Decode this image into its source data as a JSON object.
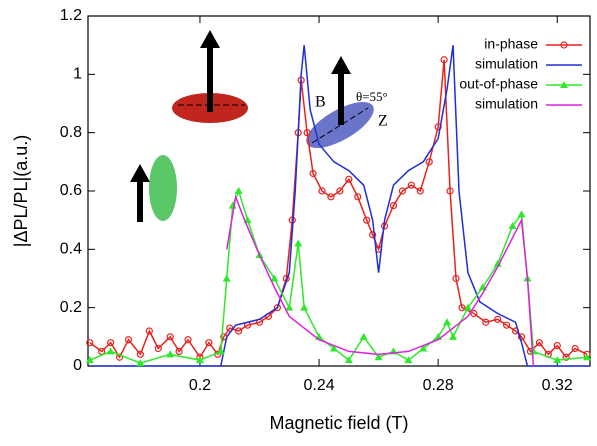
{
  "chart_data": {
    "type": "line",
    "xlabel": "Magnetic field (T)",
    "ylabel": "|ΔPL/PL|(a.u.)",
    "xlim": [
      0.1624,
      0.331
    ],
    "ylim": [
      0,
      1.2
    ],
    "xticks": [
      0.2,
      0.24,
      0.28,
      0.32
    ],
    "yticks": [
      0,
      0.2,
      0.4,
      0.6,
      0.8,
      1,
      1.2
    ],
    "legend": "upper right",
    "annotations": [
      "B",
      "θ=55°",
      "Z"
    ],
    "series": [
      {
        "name": "in-phase",
        "color": "#e8231e",
        "marker": "circle",
        "x": [
          0.163,
          0.167,
          0.17,
          0.173,
          0.176,
          0.18,
          0.183,
          0.186,
          0.19,
          0.193,
          0.196,
          0.2,
          0.203,
          0.206,
          0.208,
          0.21,
          0.213,
          0.216,
          0.22,
          0.223,
          0.226,
          0.229,
          0.231,
          0.233,
          0.234,
          0.236,
          0.238,
          0.241,
          0.244,
          0.247,
          0.25,
          0.253,
          0.256,
          0.258,
          0.26,
          0.262,
          0.265,
          0.268,
          0.271,
          0.274,
          0.277,
          0.28,
          0.282,
          0.284,
          0.286,
          0.288,
          0.292,
          0.296,
          0.3,
          0.303,
          0.306,
          0.308,
          0.311,
          0.314,
          0.317,
          0.32,
          0.323,
          0.326,
          0.33
        ],
        "values": [
          0.08,
          0.05,
          0.08,
          0.03,
          0.09,
          0.04,
          0.12,
          0.06,
          0.1,
          0.05,
          0.09,
          0.03,
          0.08,
          0.04,
          0.1,
          0.13,
          0.12,
          0.14,
          0.15,
          0.17,
          0.2,
          0.3,
          0.5,
          0.8,
          0.98,
          0.8,
          0.66,
          0.6,
          0.58,
          0.6,
          0.64,
          0.58,
          0.5,
          0.45,
          0.4,
          0.48,
          0.55,
          0.6,
          0.62,
          0.6,
          0.7,
          0.82,
          1.05,
          0.6,
          0.3,
          0.2,
          0.18,
          0.15,
          0.16,
          0.14,
          0.12,
          0.1,
          0.05,
          0.08,
          0.04,
          0.07,
          0.03,
          0.06,
          0.04
        ]
      },
      {
        "name": "simulation",
        "color": "#1f2fd6",
        "marker": null,
        "x": [
          0.163,
          0.207,
          0.209,
          0.212,
          0.22,
          0.226,
          0.23,
          0.232,
          0.234,
          0.235,
          0.237,
          0.24,
          0.245,
          0.25,
          0.255,
          0.258,
          0.26,
          0.262,
          0.265,
          0.27,
          0.275,
          0.28,
          0.283,
          0.285,
          0.287,
          0.29,
          0.294,
          0.3,
          0.306,
          0.308,
          0.31,
          0.331
        ],
        "values": [
          0,
          0,
          0.1,
          0.14,
          0.16,
          0.2,
          0.32,
          0.6,
          1.0,
          1.1,
          0.88,
          0.76,
          0.7,
          0.67,
          0.62,
          0.5,
          0.32,
          0.5,
          0.62,
          0.67,
          0.7,
          0.78,
          0.95,
          1.1,
          0.6,
          0.32,
          0.22,
          0.18,
          0.15,
          0.08,
          0,
          0
        ]
      },
      {
        "name": "out-of-phase",
        "color": "#2ee82a",
        "marker": "triangle",
        "x": [
          0.163,
          0.17,
          0.18,
          0.19,
          0.2,
          0.207,
          0.209,
          0.211,
          0.213,
          0.216,
          0.22,
          0.225,
          0.23,
          0.233,
          0.235,
          0.24,
          0.245,
          0.25,
          0.255,
          0.26,
          0.265,
          0.27,
          0.275,
          0.28,
          0.283,
          0.285,
          0.29,
          0.295,
          0.3,
          0.305,
          0.308,
          0.31,
          0.312,
          0.32,
          0.33
        ],
        "values": [
          0.02,
          0.05,
          0.01,
          0.04,
          0.02,
          0.05,
          0.3,
          0.55,
          0.6,
          0.5,
          0.38,
          0.3,
          0.2,
          0.42,
          0.2,
          0.1,
          0.06,
          0.02,
          0.1,
          0.03,
          0.05,
          0.02,
          0.06,
          0.1,
          0.15,
          0.1,
          0.2,
          0.27,
          0.35,
          0.48,
          0.52,
          0.3,
          0.05,
          0.02,
          0.03
        ]
      },
      {
        "name": "simulation",
        "color": "#e020e0",
        "marker": null,
        "x": [
          0.209,
          0.212,
          0.215,
          0.22,
          0.225,
          0.23,
          0.24,
          0.25,
          0.26,
          0.27,
          0.28,
          0.29,
          0.295,
          0.3,
          0.305,
          0.308,
          0.31,
          0.312
        ],
        "values": [
          0.4,
          0.58,
          0.5,
          0.38,
          0.27,
          0.17,
          0.09,
          0.05,
          0.04,
          0.05,
          0.09,
          0.17,
          0.25,
          0.34,
          0.44,
          0.5,
          0.3,
          0
        ]
      }
    ]
  }
}
